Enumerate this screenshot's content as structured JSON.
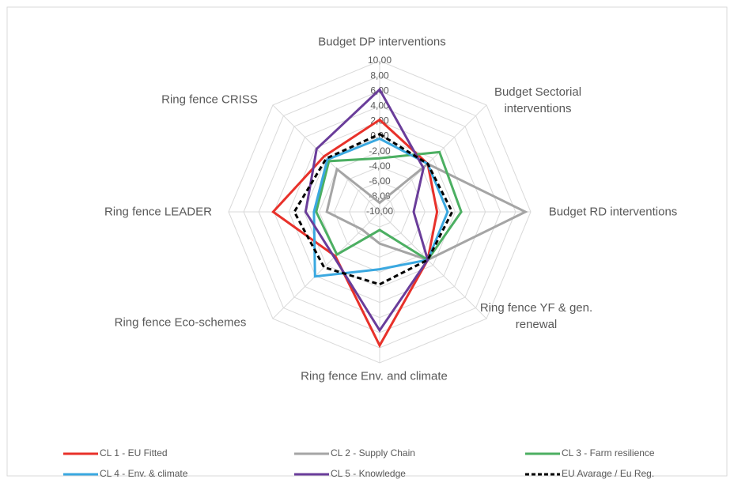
{
  "chart_data": {
    "type": "radar",
    "axes": [
      "Budget DP interventions",
      "Budget Sectorial interventions",
      "Budget RD interventions",
      "Ring fence YF & gen. renewal",
      "Ring fence  Env. and climate",
      "Ring fence  Eco-schemes",
      "Ring fence  LEADER",
      "Ring fence  CRISS"
    ],
    "rlim": [
      -10,
      10
    ],
    "rticks": [
      {
        "value": -10,
        "label": "-10,00"
      },
      {
        "value": -8,
        "label": "-8,00"
      },
      {
        "value": -6,
        "label": "-6,00"
      },
      {
        "value": -4,
        "label": "-4,00"
      },
      {
        "value": -2,
        "label": "-2,00"
      },
      {
        "value": 0,
        "label": "0,00"
      },
      {
        "value": 2,
        "label": "2,00"
      },
      {
        "value": 4,
        "label": "4,00"
      },
      {
        "value": 6,
        "label": "6,00"
      },
      {
        "value": 8,
        "label": "8,00"
      },
      {
        "value": 10,
        "label": "10,00"
      }
    ],
    "grid": true,
    "legend": "bottom",
    "series": [
      {
        "name": "CL 1 - EU Fitted",
        "color": "#e8312a",
        "values": [
          2.2,
          -1,
          -2.4,
          -1,
          7.7,
          -1.7,
          4.1,
          0.4
        ]
      },
      {
        "name": "CL 2  - Supply Chain",
        "color": "#a5a5a5",
        "values": [
          -8.8,
          -1,
          9.3,
          -1,
          -5.8,
          -6.7,
          -3,
          -2
        ]
      },
      {
        "name": "CL 3 - Farm resilience",
        "color": "#4caf62",
        "values": [
          -2.9,
          1.2,
          0.8,
          -1,
          -7.6,
          -2,
          -1.6,
          -0.5
        ]
      },
      {
        "name": "CL 4 - Env. & climate",
        "color": "#3aa8e0",
        "values": [
          -0.3,
          -1,
          -1,
          -1,
          -2.4,
          2.1,
          -1.3,
          -0.2
        ]
      },
      {
        "name": "CL 5 - Knowledge",
        "color": "#6a3d9a",
        "values": [
          6.2,
          -1.8,
          -5.5,
          -1,
          5.7,
          -1.5,
          -0.2,
          1.8
        ]
      },
      {
        "name": "EU Avarage / Eu Reg.",
        "color": "#000000",
        "dashed": true,
        "values": [
          0.3,
          -1,
          -0.4,
          -1,
          -0.4,
          0.4,
          1.3,
          0
        ]
      }
    ]
  }
}
